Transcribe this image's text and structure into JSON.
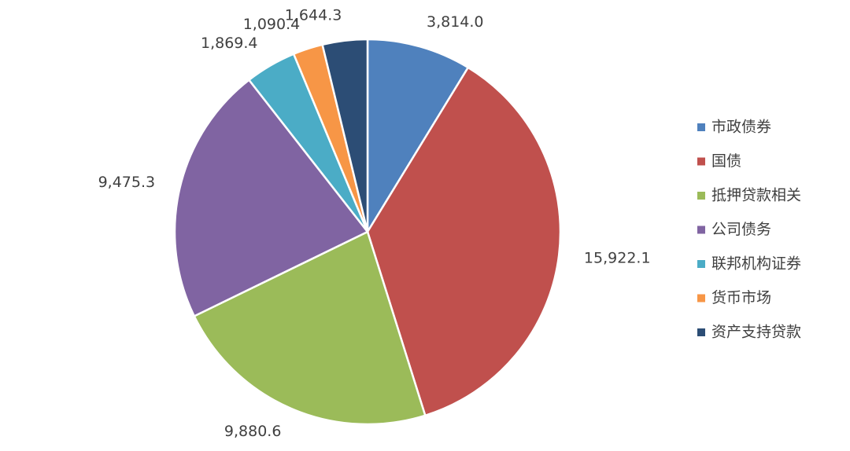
{
  "chart_data": {
    "type": "pie",
    "categories": [
      "市政债券",
      "国债",
      "抵押贷款相关",
      "公司债务",
      "联邦机构证券",
      "货币市场",
      "资产支持贷款"
    ],
    "values": [
      3814.0,
      15922.1,
      9880.6,
      9475.3,
      1869.4,
      1090.4,
      1644.3
    ],
    "value_labels": [
      "3,814.0",
      "15,922.1",
      "9,880.6",
      "9,475.3",
      "1,869.4",
      "1,090.4",
      "1,644.3"
    ],
    "colors": [
      "#4f81bd",
      "#c0504d",
      "#9bbb59",
      "#8064a2",
      "#4bacc6",
      "#f79646",
      "#2c4d75"
    ],
    "legend": "right"
  }
}
